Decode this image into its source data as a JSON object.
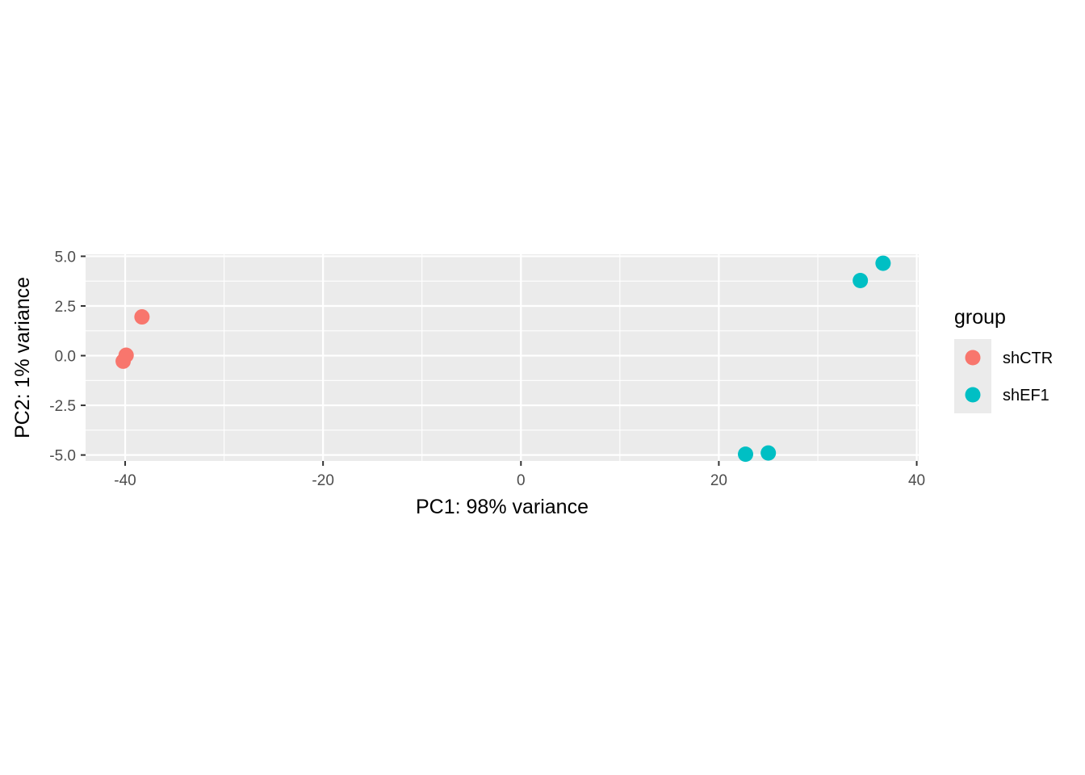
{
  "chart_data": {
    "type": "scatter",
    "xlabel": "PC1: 98% variance",
    "ylabel": "PC2: 1% variance",
    "xlim": [
      -44,
      40.2
    ],
    "ylim": [
      -5.3,
      5.1
    ],
    "x_ticks": [
      -40,
      -20,
      0,
      20,
      40
    ],
    "x_tick_labels": [
      "-40",
      "-20",
      "0",
      "20",
      "40"
    ],
    "y_ticks": [
      5.0,
      2.5,
      0.0,
      -2.5,
      -5.0
    ],
    "y_tick_labels": [
      "5.0",
      "2.5",
      "0.0",
      "-2.5",
      "-5.0"
    ],
    "grid": true,
    "legend_position": "right",
    "legend": {
      "title": "group",
      "entries": [
        {
          "label": "shCTR",
          "color": "#F8766D"
        },
        {
          "label": "shEF1",
          "color": "#00BFC4"
        }
      ]
    },
    "series": [
      {
        "name": "shCTR",
        "color": "#F8766D",
        "points": [
          {
            "x": -38.3,
            "y": 1.95
          },
          {
            "x": -39.9,
            "y": 0.02
          },
          {
            "x": -40.2,
            "y": -0.28
          }
        ]
      },
      {
        "name": "shEF1",
        "color": "#00BFC4",
        "points": [
          {
            "x": 36.6,
            "y": 4.65
          },
          {
            "x": 34.3,
            "y": 3.78
          },
          {
            "x": 22.7,
            "y": -4.96
          },
          {
            "x": 25.0,
            "y": -4.9
          }
        ]
      }
    ]
  }
}
